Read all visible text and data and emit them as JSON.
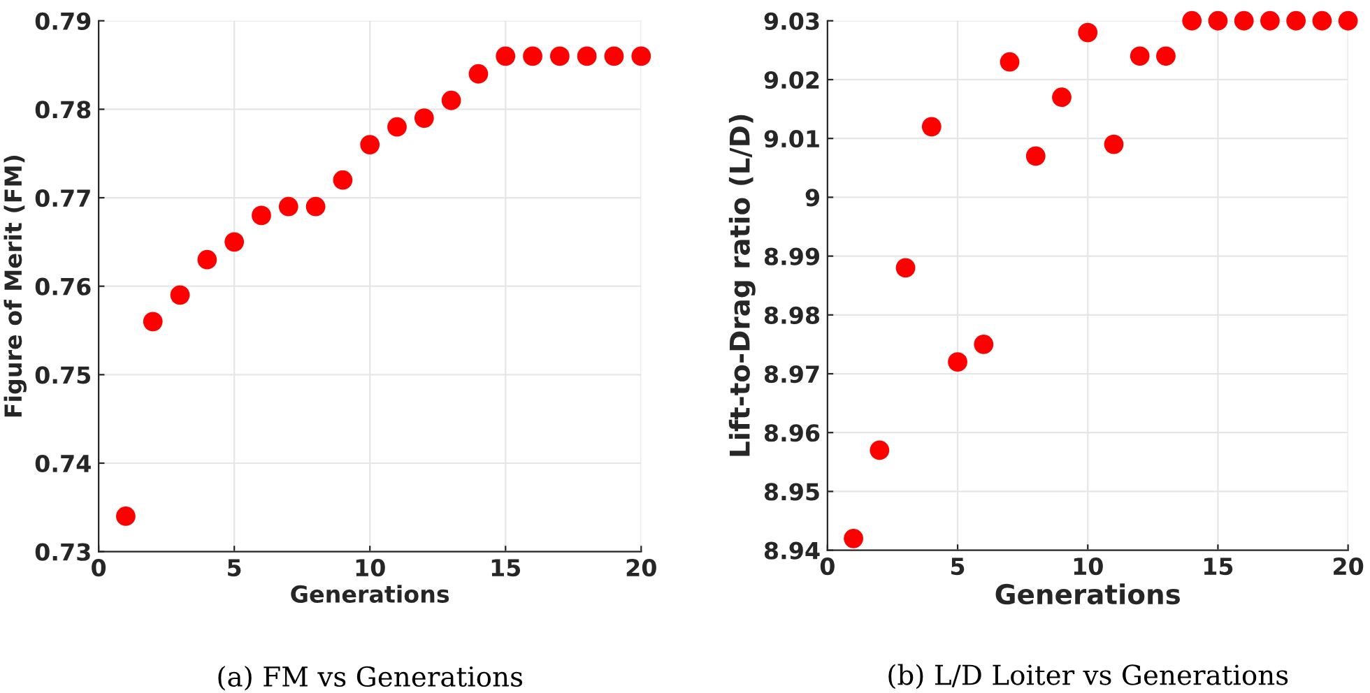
{
  "chart_data": [
    {
      "type": "scatter",
      "xlabel": "Generations",
      "ylabel": "Figure of Merit (FM)",
      "annotations": [
        "(a) FM vs Generations"
      ],
      "x": [
        1,
        2,
        3,
        4,
        5,
        6,
        7,
        8,
        9,
        10,
        11,
        12,
        13,
        14,
        15,
        16,
        17,
        18,
        19,
        20
      ],
      "series": [
        {
          "color": "#ff0000",
          "values": [
            0.734,
            0.756,
            0.759,
            0.763,
            0.765,
            0.768,
            0.769,
            0.769,
            0.772,
            0.776,
            0.778,
            0.779,
            0.781,
            0.784,
            0.786,
            0.786,
            0.786,
            0.786,
            0.786,
            0.786
          ]
        }
      ],
      "xlim": [
        0,
        20
      ],
      "xticks": [
        0,
        5,
        10,
        15,
        20
      ],
      "ylim": [
        0.73,
        0.79
      ],
      "yticks": [
        0.73,
        0.74,
        0.75,
        0.76,
        0.77,
        0.78,
        0.79
      ],
      "grid": true,
      "marker": "circle"
    },
    {
      "type": "scatter",
      "xlabel": "Generations",
      "ylabel": "Lift-to-Drag ratio (L/D)",
      "annotations": [
        "(b) L/D Loiter vs Generations"
      ],
      "x": [
        1,
        2,
        3,
        4,
        5,
        6,
        7,
        8,
        9,
        10,
        11,
        12,
        13,
        14,
        15,
        16,
        17,
        18,
        19,
        20
      ],
      "series": [
        {
          "color": "#ff0000",
          "values": [
            8.942,
            8.957,
            8.988,
            9.012,
            8.972,
            8.975,
            9.023,
            9.007,
            9.017,
            9.028,
            9.009,
            9.024,
            9.024,
            9.03,
            9.03,
            9.03,
            9.03,
            9.03,
            9.03,
            9.03
          ]
        }
      ],
      "xlim": [
        0,
        20
      ],
      "xticks": [
        0,
        5,
        10,
        15,
        20
      ],
      "ylim": [
        8.94,
        9.03
      ],
      "yticks": [
        8.94,
        8.95,
        8.96,
        8.97,
        8.98,
        8.99,
        9,
        9.01,
        9.02,
        9.03
      ],
      "grid": true,
      "marker": "circle"
    }
  ]
}
